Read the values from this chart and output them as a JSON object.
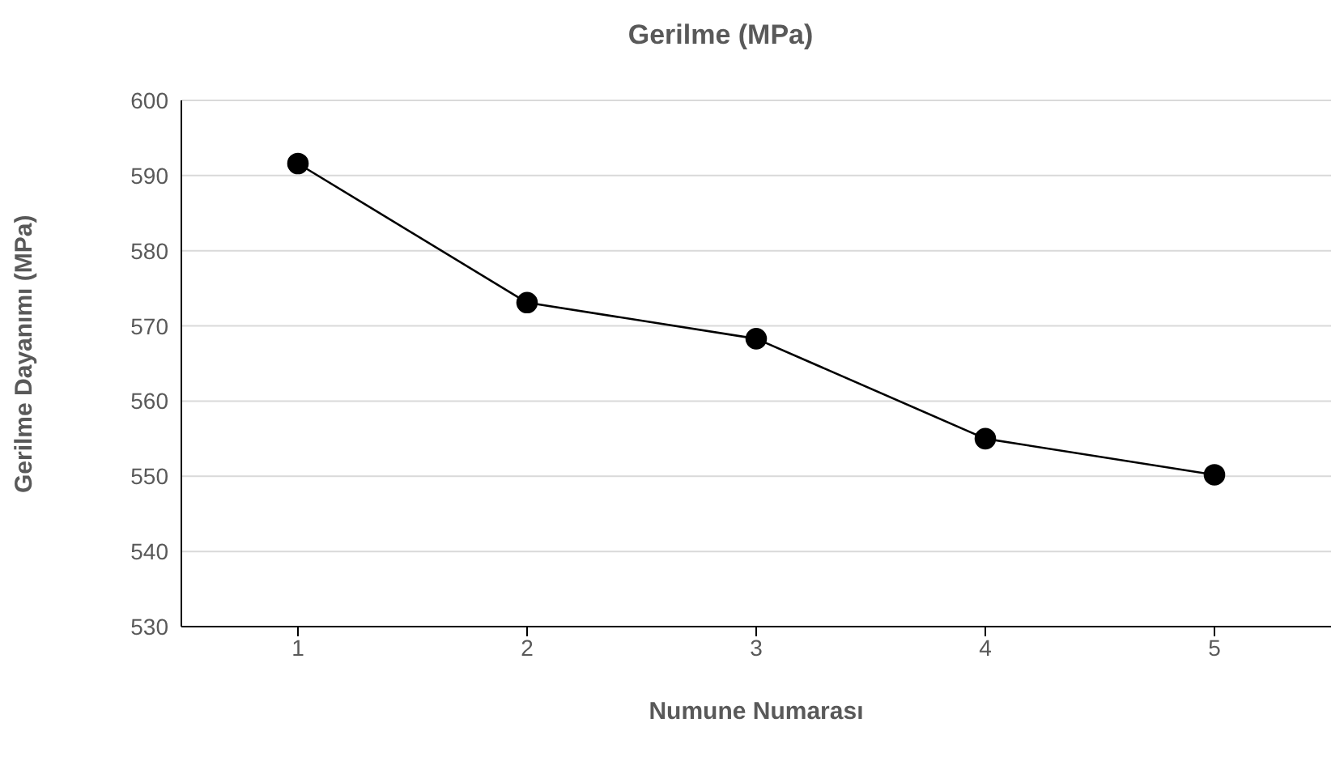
{
  "chart_data": {
    "type": "line",
    "title": "Gerilme (MPa)",
    "xlabel": "Numune Numarası",
    "ylabel": "Gerilme Dayanımı (MPa)",
    "categories": [
      "1",
      "2",
      "3",
      "4",
      "5"
    ],
    "series": [
      {
        "color": "#000000",
        "values": [
          591.6,
          573.1,
          568.3,
          555.0,
          550.2
        ]
      }
    ],
    "ylim": [
      530,
      600
    ],
    "yticks": [
      530,
      540,
      550,
      560,
      570,
      580,
      590,
      600
    ],
    "grid": "y",
    "marker": "circle",
    "line_style": "solid",
    "legend": false
  }
}
